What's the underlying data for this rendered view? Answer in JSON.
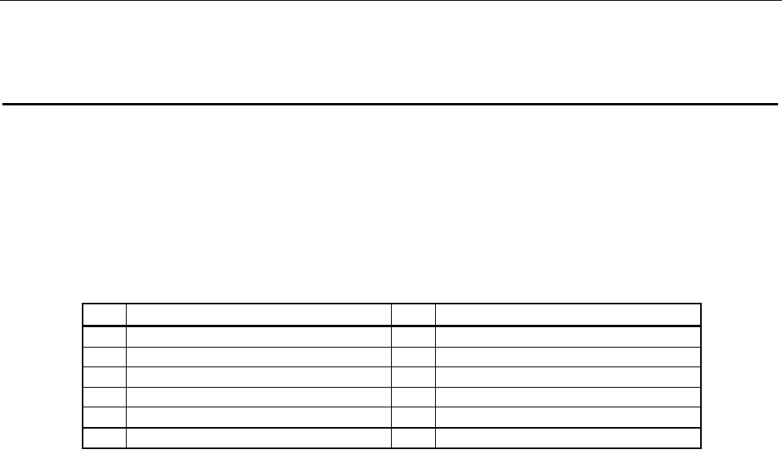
{
  "document": {
    "table": {
      "columns": [
        "",
        "",
        "",
        ""
      ],
      "rows": [
        [
          "",
          "",
          "",
          ""
        ],
        [
          "",
          "",
          "",
          ""
        ],
        [
          "",
          "",
          "",
          ""
        ],
        [
          "",
          "",
          "",
          ""
        ],
        [
          "",
          "",
          "",
          ""
        ],
        [
          "",
          "",
          "",
          ""
        ]
      ]
    }
  }
}
